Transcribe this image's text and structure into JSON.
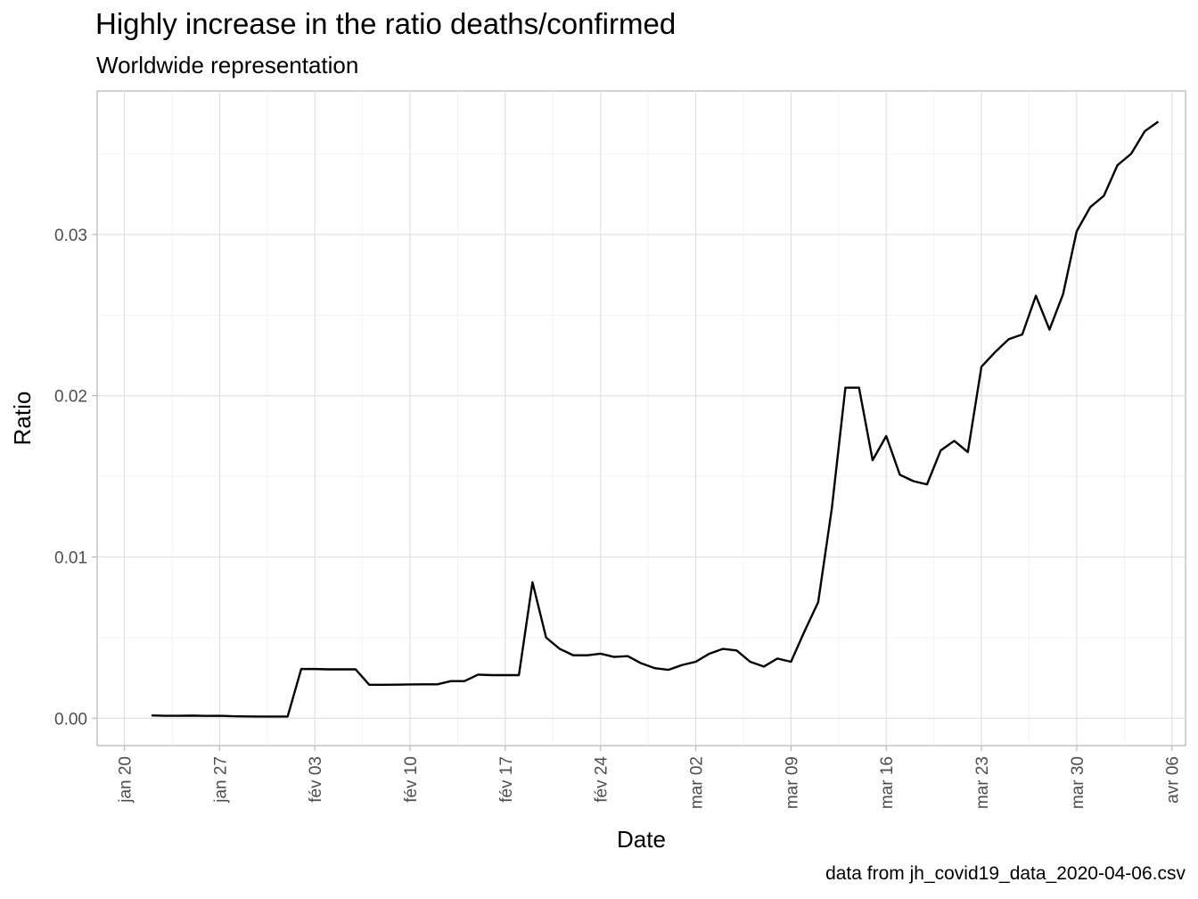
{
  "chart_data": {
    "type": "line",
    "title": "Highly increase in the ratio deaths/confirmed",
    "subtitle": "Worldwide representation",
    "caption": "data from jh_covid19_data_2020-04-06.csv",
    "xlabel": "Date",
    "ylabel": "Ratio",
    "x_ticks": [
      "jan 20",
      "jan 27",
      "fév 03",
      "fév 10",
      "fév 17",
      "fév 24",
      "mar 02",
      "mar 09",
      "mar 16",
      "mar 23",
      "mar 30",
      "avr 06"
    ],
    "y_ticks": [
      "0.00",
      "0.01",
      "0.02",
      "0.03"
    ],
    "xlim": [
      "2020-01-18",
      "2020-04-07"
    ],
    "ylim": [
      -0.0017,
      0.0389
    ],
    "grid": true,
    "series": [
      {
        "color": "#000000",
        "points": [
          [
            "2020-01-22",
            0.00017
          ],
          [
            "2020-01-23",
            0.00015
          ],
          [
            "2020-01-24",
            0.00015
          ],
          [
            "2020-01-25",
            0.00016
          ],
          [
            "2020-01-26",
            0.00014
          ],
          [
            "2020-01-27",
            0.00015
          ],
          [
            "2020-01-28",
            0.00012
          ],
          [
            "2020-01-29",
            0.00011
          ],
          [
            "2020-01-30",
            0.0001
          ],
          [
            "2020-01-31",
            0.0001
          ],
          [
            "2020-02-01",
            0.0001
          ],
          [
            "2020-02-02",
            0.00305
          ],
          [
            "2020-02-03",
            0.00305
          ],
          [
            "2020-02-04",
            0.00303
          ],
          [
            "2020-02-05",
            0.00303
          ],
          [
            "2020-02-06",
            0.00303
          ],
          [
            "2020-02-07",
            0.00207
          ],
          [
            "2020-02-08",
            0.00207
          ],
          [
            "2020-02-09",
            0.00208
          ],
          [
            "2020-02-10",
            0.00209
          ],
          [
            "2020-02-11",
            0.0021
          ],
          [
            "2020-02-12",
            0.0021
          ],
          [
            "2020-02-13",
            0.0023
          ],
          [
            "2020-02-14",
            0.0023
          ],
          [
            "2020-02-15",
            0.0027
          ],
          [
            "2020-02-16",
            0.00267
          ],
          [
            "2020-02-17",
            0.00267
          ],
          [
            "2020-02-18",
            0.00267
          ],
          [
            "2020-02-19",
            0.00843
          ],
          [
            "2020-02-20",
            0.005
          ],
          [
            "2020-02-21",
            0.0043
          ],
          [
            "2020-02-22",
            0.0039
          ],
          [
            "2020-02-23",
            0.0039
          ],
          [
            "2020-02-24",
            0.004
          ],
          [
            "2020-02-25",
            0.0038
          ],
          [
            "2020-02-26",
            0.00385
          ],
          [
            "2020-02-27",
            0.0034
          ],
          [
            "2020-02-28",
            0.0031
          ],
          [
            "2020-02-29",
            0.003
          ],
          [
            "2020-03-01",
            0.0033
          ],
          [
            "2020-03-02",
            0.0035
          ],
          [
            "2020-03-03",
            0.004
          ],
          [
            "2020-03-04",
            0.0043
          ],
          [
            "2020-03-05",
            0.0042
          ],
          [
            "2020-03-06",
            0.0035
          ],
          [
            "2020-03-07",
            0.0032
          ],
          [
            "2020-03-08",
            0.0037
          ],
          [
            "2020-03-09",
            0.0035
          ],
          [
            "2020-03-10",
            0.0054
          ],
          [
            "2020-03-11",
            0.0072
          ],
          [
            "2020-03-12",
            0.013
          ],
          [
            "2020-03-13",
            0.0205
          ],
          [
            "2020-03-14",
            0.0205
          ],
          [
            "2020-03-15",
            0.016
          ],
          [
            "2020-03-16",
            0.0175
          ],
          [
            "2020-03-17",
            0.0151
          ],
          [
            "2020-03-18",
            0.0147
          ],
          [
            "2020-03-19",
            0.0145
          ],
          [
            "2020-03-20",
            0.0166
          ],
          [
            "2020-03-21",
            0.0172
          ],
          [
            "2020-03-22",
            0.0165
          ],
          [
            "2020-03-23",
            0.0218
          ],
          [
            "2020-03-24",
            0.0227
          ],
          [
            "2020-03-25",
            0.0235
          ],
          [
            "2020-03-26",
            0.0238
          ],
          [
            "2020-03-27",
            0.0262
          ],
          [
            "2020-03-28",
            0.0241
          ],
          [
            "2020-03-29",
            0.0263
          ],
          [
            "2020-03-30",
            0.0302
          ],
          [
            "2020-03-31",
            0.0317
          ],
          [
            "2020-04-01",
            0.0324
          ],
          [
            "2020-04-02",
            0.0343
          ],
          [
            "2020-04-03",
            0.035
          ],
          [
            "2020-04-04",
            0.0364
          ],
          [
            "2020-04-05",
            0.037
          ]
        ]
      }
    ]
  }
}
